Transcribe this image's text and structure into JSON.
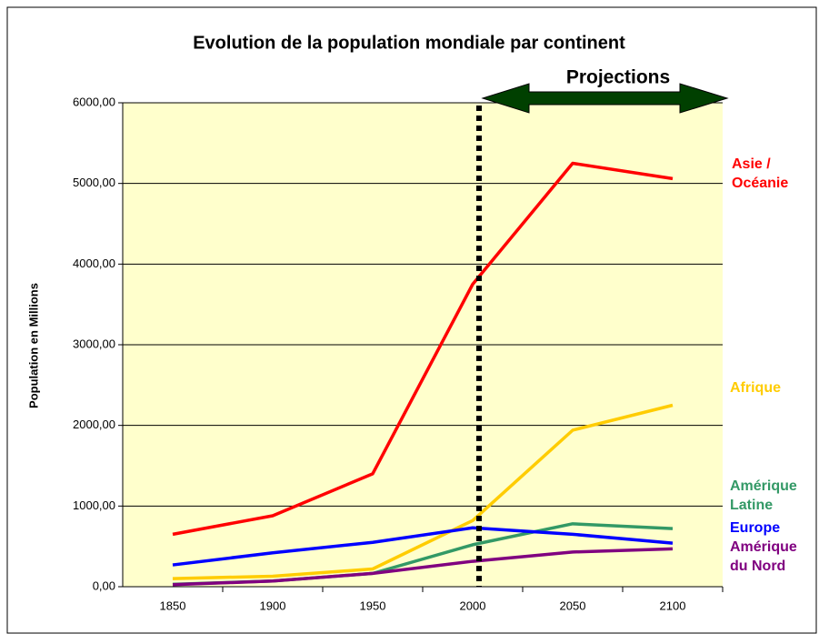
{
  "chart_data": {
    "type": "line",
    "title": "Evolution de la population mondiale par continent",
    "annotation": "Projections",
    "y_label": "Population en Millions",
    "categories": [
      "1850",
      "1900",
      "1950",
      "2000",
      "2050",
      "2100"
    ],
    "series": [
      {
        "name": "Asie / Océanie",
        "color": "#ff0000",
        "values": [
          650,
          880,
          1400,
          3750,
          5250,
          5060
        ]
      },
      {
        "name": "Afrique",
        "color": "#ffcc00",
        "values": [
          100,
          130,
          220,
          820,
          1940,
          2250
        ]
      },
      {
        "name": "Amérique Latine",
        "color": "#339966",
        "values": [
          30,
          70,
          165,
          520,
          780,
          720
        ]
      },
      {
        "name": "Europe",
        "color": "#0000ff",
        "values": [
          270,
          420,
          550,
          730,
          650,
          540
        ]
      },
      {
        "name": "Amérique du Nord",
        "color": "#800080",
        "values": [
          25,
          70,
          165,
          315,
          430,
          470
        ]
      }
    ],
    "ylim": [
      0,
      6000
    ],
    "yticks": [
      {
        "value": 0,
        "label": "0,00"
      },
      {
        "value": 1000,
        "label": "1000,00"
      },
      {
        "value": 2000,
        "label": "2000,00"
      },
      {
        "value": 3000,
        "label": "3000,00"
      },
      {
        "value": 4000,
        "label": "4000,00"
      },
      {
        "value": 5000,
        "label": "5000,00"
      },
      {
        "value": 6000,
        "label": "6000,00"
      }
    ],
    "grid": true
  }
}
